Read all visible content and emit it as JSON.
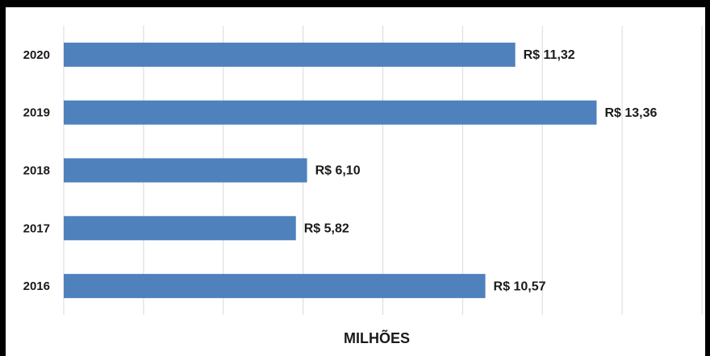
{
  "chart_data": {
    "type": "bar",
    "orientation": "horizontal",
    "categories": [
      "2020",
      "2019",
      "2018",
      "2017",
      "2016"
    ],
    "values": [
      11.32,
      13.36,
      6.1,
      5.82,
      10.57
    ],
    "value_labels": [
      "R$ 11,32",
      "R$ 13,36",
      "R$ 6,10",
      "R$ 5,82",
      "R$ 10,57"
    ],
    "color": "#4f81bd",
    "xlabel": "MILHÕES",
    "xlim": [
      0,
      16
    ],
    "xticks": [
      0,
      2,
      4,
      6,
      8,
      10,
      12,
      14,
      16
    ],
    "grid": true
  }
}
